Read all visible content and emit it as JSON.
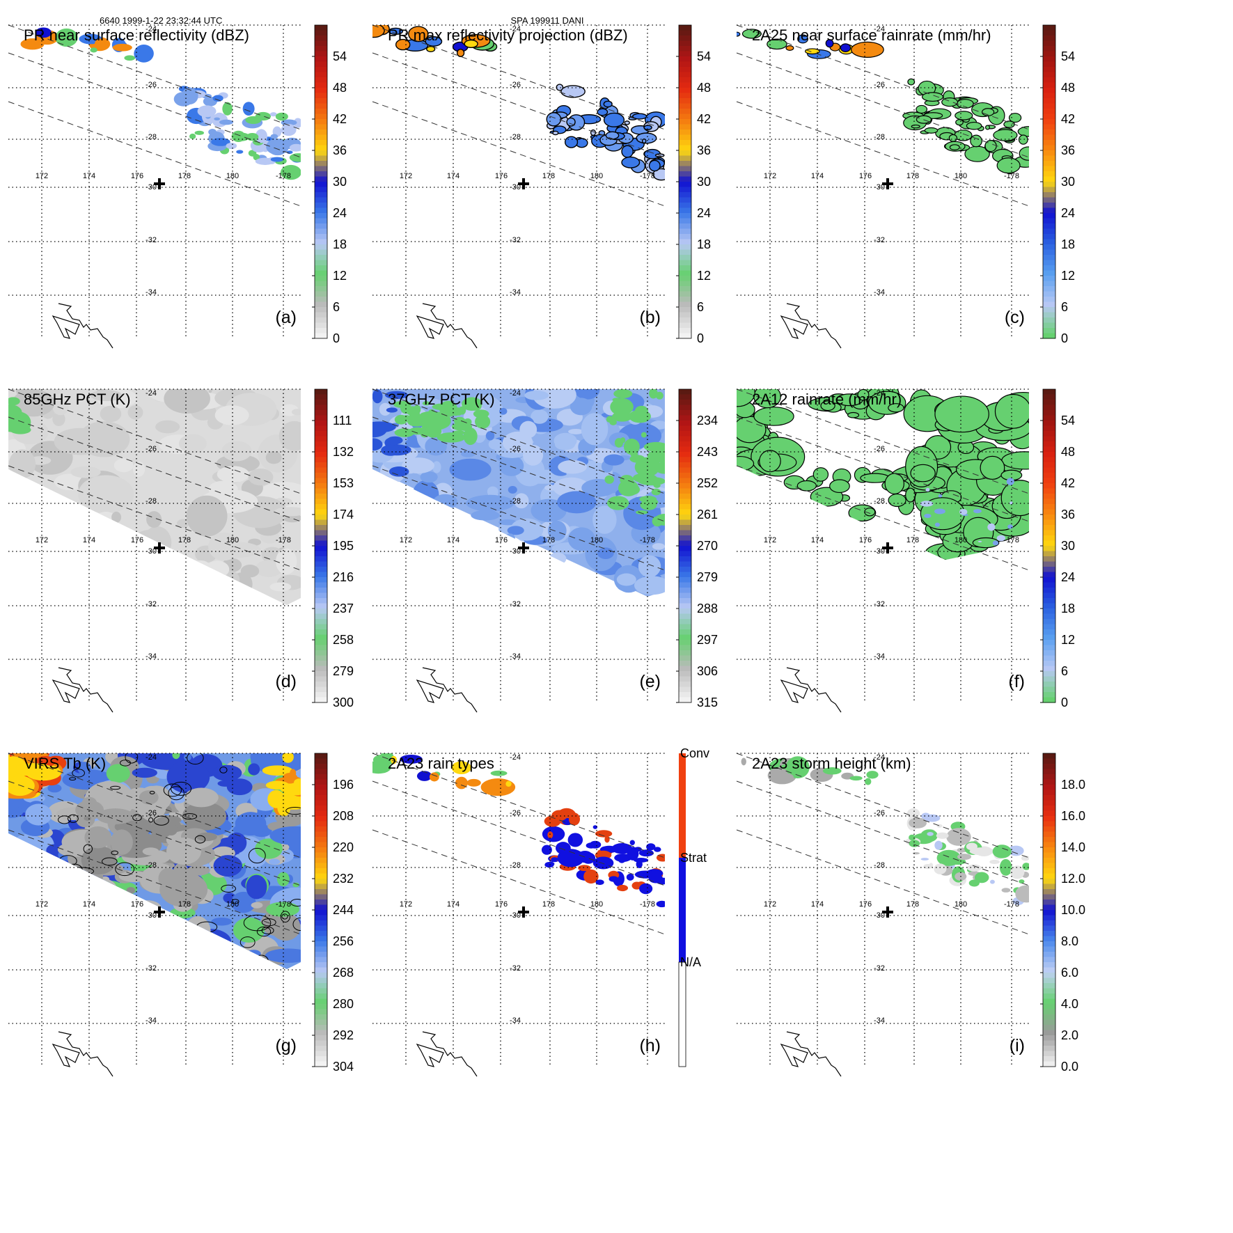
{
  "header": {
    "left": "6640 1999-1-22 23:32:44 UTC",
    "center": "SPA 199911 DANI"
  },
  "map": {
    "lon_labels": [
      "172",
      "174",
      "176",
      "178",
      "180",
      "-178"
    ],
    "lat_labels": [
      "-24",
      "-26",
      "-28",
      "-30",
      "-32",
      "-34"
    ]
  },
  "chart_data": [
    {
      "type": "heatmap",
      "panel": "(a)",
      "title": "PR near surface reflectivity (dBZ)",
      "colorbar": {
        "ticks": [
          "54",
          "48",
          "42",
          "36",
          "30",
          "24",
          "18",
          "12",
          "6",
          "0"
        ],
        "min": 0,
        "max": 60
      },
      "style": "swath-sparse"
    },
    {
      "type": "heatmap",
      "panel": "(b)",
      "title": "PR max reflectivity projection (dBZ)",
      "colorbar": {
        "ticks": [
          "54",
          "48",
          "42",
          "36",
          "30",
          "24",
          "18",
          "12",
          "6",
          "0"
        ],
        "min": 0,
        "max": 60
      },
      "style": "swath-sparse-contour"
    },
    {
      "type": "heatmap",
      "panel": "(c)",
      "title": "2A25 near surface rainrate (mm/hr)",
      "colorbar": {
        "ticks": [
          "54",
          "48",
          "42",
          "36",
          "30",
          "24",
          "18",
          "12",
          "6",
          "0"
        ],
        "min": 0,
        "max": 60
      },
      "style": "swath-sparse-green"
    },
    {
      "type": "heatmap",
      "panel": "(d)",
      "title": "85GHz PCT (K)",
      "colorbar": {
        "ticks": [
          "111",
          "132",
          "153",
          "174",
          "195",
          "216",
          "237",
          "258",
          "279",
          "300"
        ],
        "min": 90,
        "max": 300
      },
      "style": "tmi-gray"
    },
    {
      "type": "heatmap",
      "panel": "(e)",
      "title": "37GHz PCT (K)",
      "colorbar": {
        "ticks": [
          "234",
          "243",
          "252",
          "261",
          "270",
          "279",
          "288",
          "297",
          "306",
          "315"
        ],
        "min": 225,
        "max": 315
      },
      "style": "tmi-blue"
    },
    {
      "type": "heatmap",
      "panel": "(f)",
      "title": "2A12 rainrate (mm/hr)",
      "colorbar": {
        "ticks": [
          "54",
          "48",
          "42",
          "36",
          "30",
          "24",
          "18",
          "12",
          "6",
          "0"
        ],
        "min": 0,
        "max": 60
      },
      "style": "tmi-green-patches"
    },
    {
      "type": "heatmap",
      "panel": "(g)",
      "title": "VIRS Tb (K)",
      "colorbar": {
        "ticks": [
          "196",
          "208",
          "220",
          "232",
          "244",
          "256",
          "268",
          "280",
          "292",
          "304"
        ],
        "min": 184,
        "max": 304
      },
      "style": "virs"
    },
    {
      "type": "heatmap",
      "panel": "(h)",
      "title": "2A23 rain types",
      "categories": [
        "Conv",
        "Strat",
        "N/A"
      ],
      "style": "swath-raintype"
    },
    {
      "type": "heatmap",
      "panel": "(i)",
      "title": "2A23 storm height (km)",
      "colorbar": {
        "ticks": [
          "18.0",
          "16.0",
          "14.0",
          "12.0",
          "10.0",
          "8.0",
          "6.0",
          "4.0",
          "2.0",
          "0.0"
        ],
        "min": 0,
        "max": 20
      },
      "style": "swath-height"
    }
  ]
}
